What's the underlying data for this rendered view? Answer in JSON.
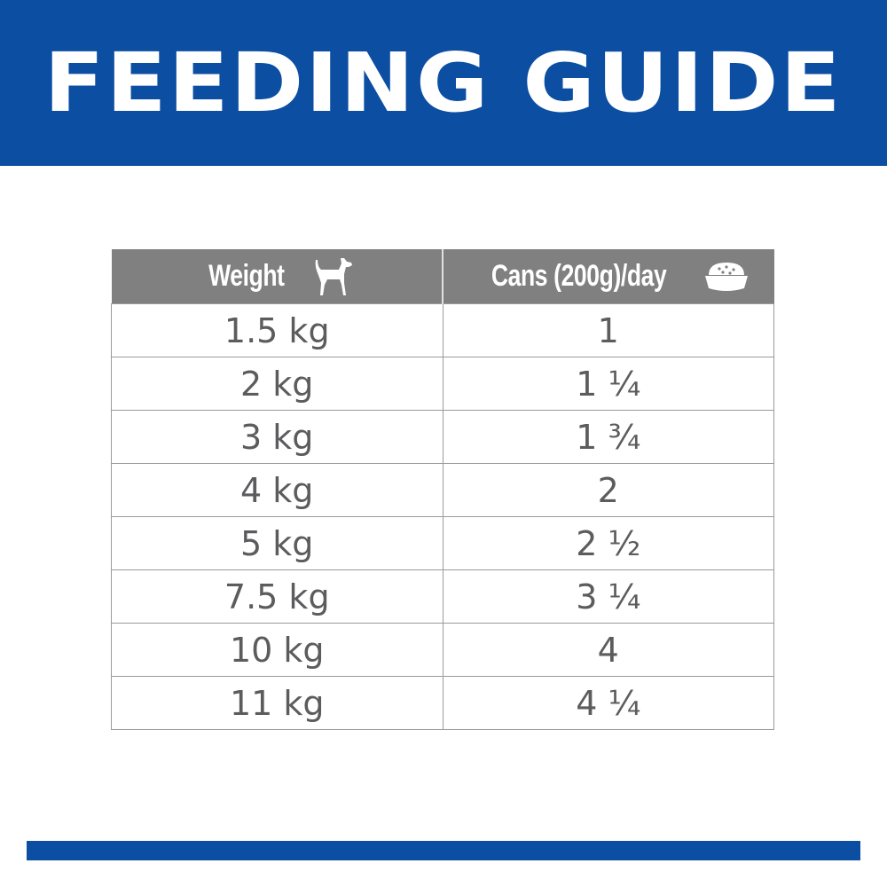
{
  "banner": {
    "title": "FEEDING GUIDE"
  },
  "table": {
    "headers": [
      {
        "label": "Weight",
        "icon": "dog-icon"
      },
      {
        "label": "Cans (200g)/day",
        "icon": "food-bowl-icon"
      }
    ],
    "rows": [
      [
        "1.5 kg",
        "1"
      ],
      [
        "2 kg",
        "1 ¼"
      ],
      [
        "3 kg",
        "1 ¾"
      ],
      [
        "4 kg",
        "2"
      ],
      [
        "5 kg",
        "2 ½"
      ],
      [
        "7.5 kg",
        "3 ¼"
      ],
      [
        "10 kg",
        "4"
      ],
      [
        "11 kg",
        "4 ¼"
      ]
    ]
  },
  "colors": {
    "brand_blue": "#0b4ea2",
    "header_gray": "#808080",
    "text_gray": "#5c5c5e"
  }
}
